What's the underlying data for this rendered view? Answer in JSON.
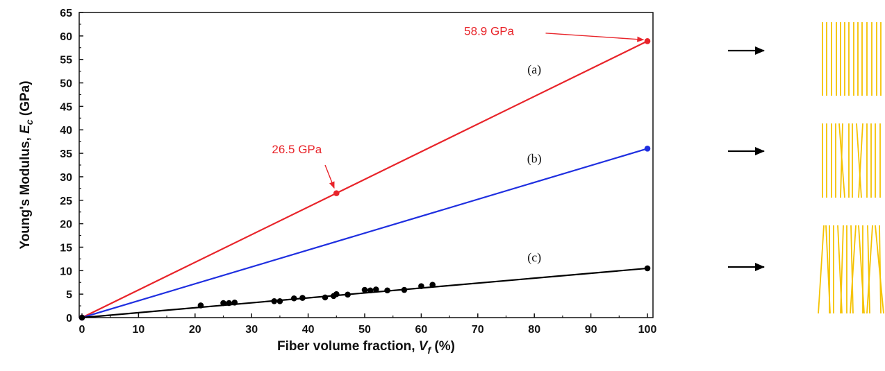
{
  "chart_data": {
    "type": "line",
    "xlabel_main": "Fiber volume fraction, ",
    "xlabel_var": "V",
    "xlabel_sub": "f",
    "xlabel_unit": " (%)",
    "ylabel_main": "Young's Modulus, ",
    "ylabel_var": "E",
    "ylabel_sub": "c",
    "ylabel_unit": " (GPa)",
    "xlim": [
      0,
      100
    ],
    "ylim": [
      0,
      65
    ],
    "x_ticks": [
      "0",
      "10",
      "20",
      "30",
      "40",
      "50",
      "60",
      "70",
      "80",
      "90",
      "100"
    ],
    "y_ticks": [
      "0",
      "5",
      "10",
      "15",
      "20",
      "25",
      "30",
      "35",
      "40",
      "45",
      "50",
      "55",
      "60",
      "65"
    ],
    "grid": false,
    "series": [
      {
        "label": "(a)",
        "color": "#e8242a",
        "x": [
          0,
          100
        ],
        "y": [
          0,
          58.9
        ],
        "points_x": [
          0,
          45,
          100
        ],
        "points_y": [
          0,
          26.5,
          58.9
        ]
      },
      {
        "label": "(b)",
        "color": "#1f2fe0",
        "x": [
          0,
          100
        ],
        "y": [
          0,
          36
        ],
        "points_x": [
          0,
          100
        ],
        "points_y": [
          0,
          36
        ]
      },
      {
        "label": "(c)",
        "color": "#000000",
        "x": [
          0,
          100
        ],
        "y": [
          0,
          10.5
        ],
        "points_x": [
          0,
          21,
          25,
          26,
          27,
          34,
          35,
          37.5,
          39,
          43,
          44.5,
          45,
          47,
          50,
          51,
          52,
          54,
          57,
          60,
          62,
          100
        ],
        "points_y": [
          0,
          2.6,
          3.1,
          3.1,
          3.2,
          3.5,
          3.5,
          4.1,
          4.2,
          4.3,
          4.6,
          5.0,
          4.9,
          5.9,
          5.8,
          6.0,
          5.8,
          5.9,
          6.7,
          7.0,
          10.5
        ]
      }
    ],
    "annotations": [
      {
        "text": "58.9 GPa",
        "color": "#e8242a",
        "point_x": 100,
        "point_y": 58.9
      },
      {
        "text": "26.5 GPa",
        "color": "#e8242a",
        "point_x": 45,
        "point_y": 26.5
      }
    ]
  },
  "fiber_diagrams": {
    "fiber_color": "#f5c200",
    "arrow_color": "#000000"
  }
}
